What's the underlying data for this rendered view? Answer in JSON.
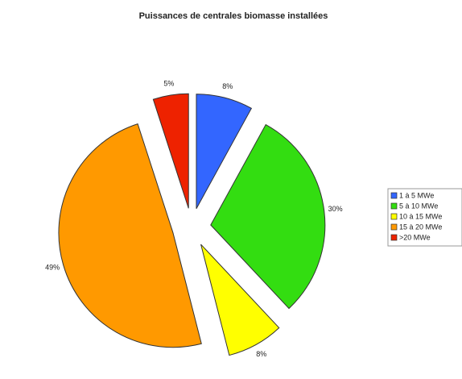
{
  "chart_data": {
    "type": "pie",
    "title": "Puissances de centrales biomasse installées",
    "categories": [
      "1 à 5 MWe",
      "5 à 10 MWe",
      "10 à 15 MWe",
      "15 à 20 MWe",
      ">20 MWe"
    ],
    "values": [
      8,
      30,
      8,
      49,
      5
    ],
    "value_labels": [
      "8%",
      "30%",
      "8%",
      "49%",
      "5%"
    ],
    "colors": [
      "#3366ff",
      "#33dd11",
      "#ffff00",
      "#ff9900",
      "#ee2200"
    ],
    "exploded": true,
    "legend": "right"
  }
}
